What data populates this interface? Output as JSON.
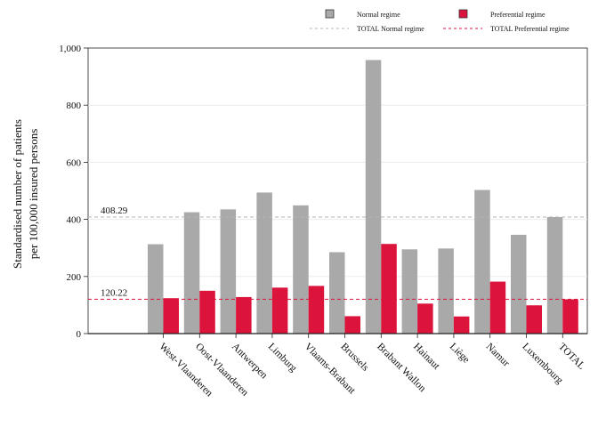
{
  "chart_data": {
    "type": "bar",
    "ylabel": [
      "Standardised number of patients",
      "per 100,000 insured persons"
    ],
    "ylim": [
      0,
      1000
    ],
    "yticks": [
      0,
      200,
      400,
      600,
      800,
      1000
    ],
    "ytick_labels": [
      "0",
      "200",
      "400",
      "600",
      "800",
      "1,000"
    ],
    "grid": true,
    "legend_position": "top-right",
    "categories": [
      "West-Vlaanderen",
      "Oost-Vlaanderen",
      "Antwerpen",
      "Limburg",
      "Vlaams-Brabant",
      "Brussels",
      "Brabant Wallon",
      "Hainaut",
      "Liège",
      "Namur",
      "Luxembourg",
      "TOTAL"
    ],
    "series": [
      {
        "name": "Normal regime",
        "color": "#a9a9a9",
        "values": [
          313,
          425,
          435,
          494,
          449,
          285,
          958,
          295,
          298,
          503,
          346,
          408
        ]
      },
      {
        "name": "Preferential regime",
        "color": "#dc143c",
        "values": [
          124,
          150,
          128,
          161,
          167,
          61,
          314,
          105,
          60,
          182,
          99,
          120
        ]
      }
    ],
    "reference_lines": [
      {
        "name": "TOTAL Normal regime",
        "value": 408.29,
        "label": "408.29",
        "color": "#b4b4b4"
      },
      {
        "name": "TOTAL Preferential regime",
        "value": 120.22,
        "label": "120.22",
        "color": "#dc143c"
      }
    ]
  }
}
